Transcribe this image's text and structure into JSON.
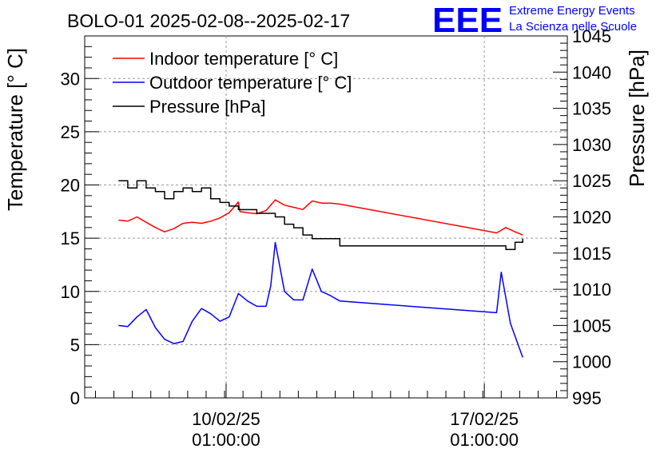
{
  "header": {
    "title": "BOLO-01 2025-02-08--2025-02-17",
    "logo_text": "EEE",
    "org_line1": "Extreme Energy Events",
    "org_line2": "La Scienza nelle Scuole"
  },
  "colors": {
    "indoor": "#ff0000",
    "outdoor": "#0000ff",
    "pressure": "#000000",
    "logo": "#0000ff"
  },
  "chart_data": {
    "type": "line",
    "title": "BOLO-01 2025-02-08--2025-02-17",
    "x_axis": {
      "label": "",
      "range": [
        "2025-02-06 05:00",
        "2025-02-19 07:00"
      ],
      "ticks": [
        {
          "value": "2025-02-10 01:00",
          "line1": "10/02/25",
          "line2": "01:00:00"
        },
        {
          "value": "2025-02-17 01:00",
          "line1": "17/02/25",
          "line2": "01:00:00"
        }
      ],
      "grid": true
    },
    "y_left": {
      "label": "Temperature [° C]",
      "range": [
        0,
        34
      ],
      "ticks": [
        0,
        5,
        10,
        15,
        20,
        25,
        30
      ],
      "grid": true
    },
    "y_right": {
      "label": "Pressure [hPa]",
      "range": [
        995,
        1045
      ],
      "ticks": [
        995,
        1000,
        1005,
        1010,
        1015,
        1020,
        1025,
        1030,
        1035,
        1040,
        1045
      ]
    },
    "legend": {
      "placement": "top-left",
      "entries": [
        "Indoor temperature [° C]",
        "Outdoor temperature [° C]",
        "Pressure [hPa]"
      ]
    },
    "series": [
      {
        "name": "Indoor temperature [° C]",
        "axis": "left",
        "points": [
          [
            "2025-02-07 03:00",
            16.7
          ],
          [
            "2025-02-07 09:00",
            16.6
          ],
          [
            "2025-02-07 15:00",
            17.0
          ],
          [
            "2025-02-07 21:00",
            16.5
          ],
          [
            "2025-02-08 03:00",
            16.0
          ],
          [
            "2025-02-08 09:00",
            15.6
          ],
          [
            "2025-02-08 15:00",
            15.9
          ],
          [
            "2025-02-08 21:00",
            16.4
          ],
          [
            "2025-02-09 03:00",
            16.5
          ],
          [
            "2025-02-09 09:00",
            16.4
          ],
          [
            "2025-02-09 15:00",
            16.6
          ],
          [
            "2025-02-09 21:00",
            16.9
          ],
          [
            "2025-02-10 03:00",
            17.4
          ],
          [
            "2025-02-10 09:00",
            18.4
          ],
          [
            "2025-02-10 10:00",
            17.5
          ],
          [
            "2025-02-10 15:00",
            17.4
          ],
          [
            "2025-02-10 21:00",
            17.3
          ],
          [
            "2025-02-11 03:00",
            17.6
          ],
          [
            "2025-02-11 09:00",
            18.6
          ],
          [
            "2025-02-11 15:00",
            18.1
          ],
          [
            "2025-02-11 21:00",
            17.9
          ],
          [
            "2025-02-12 03:00",
            17.7
          ],
          [
            "2025-02-12 09:00",
            18.5
          ],
          [
            "2025-02-12 15:00",
            18.3
          ],
          [
            "2025-02-12 21:00",
            18.3
          ],
          [
            "2025-02-13 03:00",
            18.2
          ],
          [
            "2025-02-17 09:00",
            15.5
          ],
          [
            "2025-02-17 15:00",
            16.0
          ],
          [
            "2025-02-17 21:00",
            15.6
          ],
          [
            "2025-02-18 02:00",
            15.3
          ]
        ]
      },
      {
        "name": "Outdoor temperature [° C]",
        "axis": "left",
        "points": [
          [
            "2025-02-07 03:00",
            6.8
          ],
          [
            "2025-02-07 09:00",
            6.7
          ],
          [
            "2025-02-07 15:00",
            7.6
          ],
          [
            "2025-02-07 21:00",
            8.3
          ],
          [
            "2025-02-08 03:00",
            6.6
          ],
          [
            "2025-02-08 09:00",
            5.5
          ],
          [
            "2025-02-08 15:00",
            5.1
          ],
          [
            "2025-02-08 21:00",
            5.3
          ],
          [
            "2025-02-09 03:00",
            7.2
          ],
          [
            "2025-02-09 09:00",
            8.4
          ],
          [
            "2025-02-09 15:00",
            7.9
          ],
          [
            "2025-02-09 21:00",
            7.2
          ],
          [
            "2025-02-10 03:00",
            7.6
          ],
          [
            "2025-02-10 09:00",
            9.8
          ],
          [
            "2025-02-10 15:00",
            9.1
          ],
          [
            "2025-02-10 21:00",
            8.6
          ],
          [
            "2025-02-11 03:00",
            8.6
          ],
          [
            "2025-02-11 06:00",
            10.5
          ],
          [
            "2025-02-11 09:00",
            14.6
          ],
          [
            "2025-02-11 15:00",
            10.0
          ],
          [
            "2025-02-11 21:00",
            9.2
          ],
          [
            "2025-02-12 03:00",
            9.2
          ],
          [
            "2025-02-12 09:00",
            12.1
          ],
          [
            "2025-02-12 15:00",
            10.0
          ],
          [
            "2025-02-12 21:00",
            9.6
          ],
          [
            "2025-02-13 03:00",
            9.1
          ],
          [
            "2025-02-17 09:00",
            8.0
          ],
          [
            "2025-02-17 12:00",
            11.8
          ],
          [
            "2025-02-17 18:00",
            7.0
          ],
          [
            "2025-02-18 02:00",
            3.8
          ]
        ]
      },
      {
        "name": "Pressure [hPa]",
        "axis": "right",
        "points": [
          [
            "2025-02-07 03:00",
            1025.0
          ],
          [
            "2025-02-07 09:00",
            1024.0
          ],
          [
            "2025-02-07 15:00",
            1025.0
          ],
          [
            "2025-02-07 21:00",
            1024.0
          ],
          [
            "2025-02-08 03:00",
            1023.5
          ],
          [
            "2025-02-08 09:00",
            1022.5
          ],
          [
            "2025-02-08 15:00",
            1023.5
          ],
          [
            "2025-02-08 21:00",
            1024.0
          ],
          [
            "2025-02-09 03:00",
            1023.5
          ],
          [
            "2025-02-09 09:00",
            1024.0
          ],
          [
            "2025-02-09 15:00",
            1022.5
          ],
          [
            "2025-02-09 21:00",
            1022.0
          ],
          [
            "2025-02-10 03:00",
            1021.5
          ],
          [
            "2025-02-10 09:00",
            1021.0
          ],
          [
            "2025-02-10 15:00",
            1021.0
          ],
          [
            "2025-02-10 21:00",
            1020.5
          ],
          [
            "2025-02-11 03:00",
            1020.5
          ],
          [
            "2025-02-11 09:00",
            1020.0
          ],
          [
            "2025-02-11 15:00",
            1019.0
          ],
          [
            "2025-02-11 21:00",
            1018.5
          ],
          [
            "2025-02-12 03:00",
            1017.5
          ],
          [
            "2025-02-12 09:00",
            1017.0
          ],
          [
            "2025-02-12 15:00",
            1017.0
          ],
          [
            "2025-02-12 21:00",
            1017.0
          ],
          [
            "2025-02-13 03:00",
            1016.0
          ],
          [
            "2025-02-17 09:00",
            1016.0
          ],
          [
            "2025-02-17 15:00",
            1015.5
          ],
          [
            "2025-02-17 21:00",
            1016.5
          ],
          [
            "2025-02-18 02:00",
            1017.0
          ]
        ]
      }
    ]
  }
}
